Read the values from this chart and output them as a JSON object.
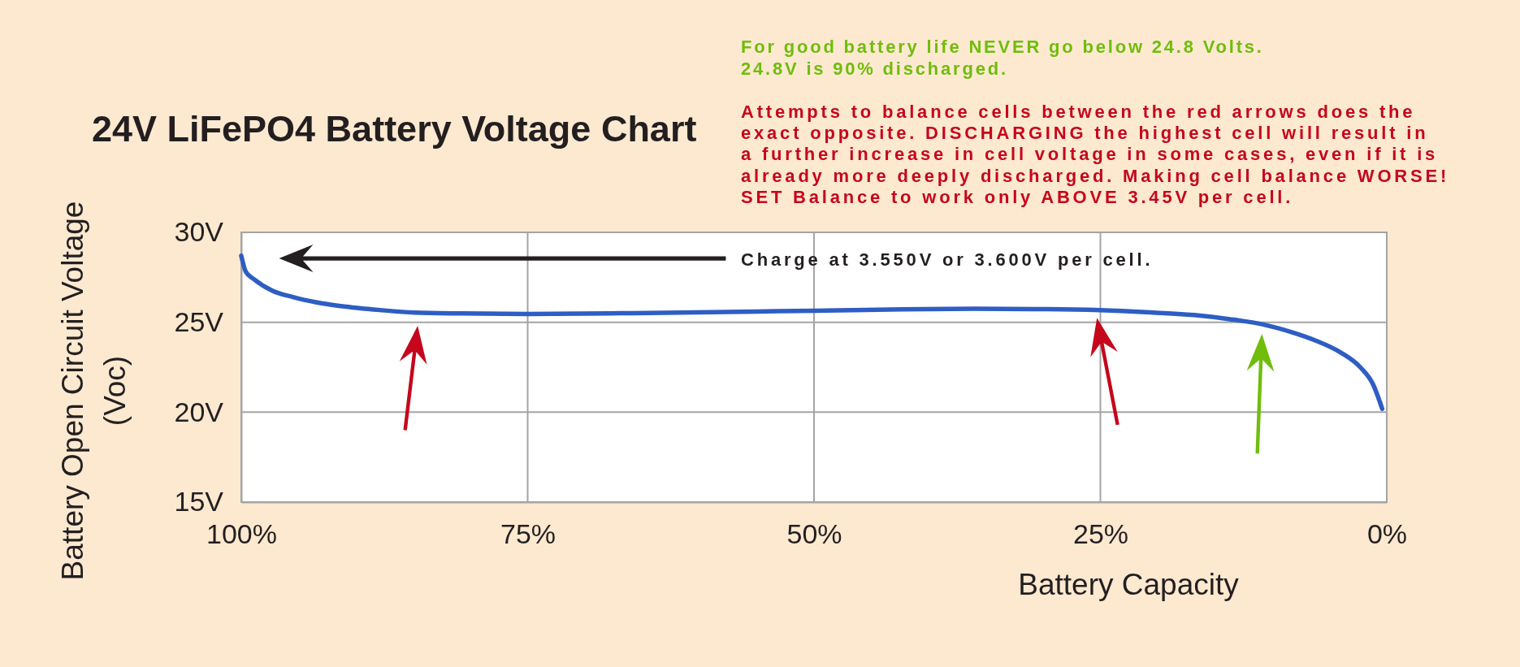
{
  "chart_data": {
    "type": "line",
    "title": "24V LiFePO4 Battery Voltage Chart",
    "xlabel": "Battery Capacity",
    "ylabel": "Battery Open Circuit Voltage\n(Voc)",
    "annotations": [
      "For good battery life NEVER go below 24.8 Volts.\n24.8V is 90% discharged.",
      "Attempts to balance cells between the red arrows does the\nexact opposite. DISCHARGING the highest cell will result in\na further increase in cell voltage in some cases, even if it is\nalready more deeply discharged. Making cell balance WORSE!\nSET Balance to work only ABOVE 3.45V per cell.",
      "Charge at 3.550V or 3.600V per cell."
    ],
    "x": [
      100,
      99.6,
      98.9,
      97.3,
      95.5,
      93.4,
      91.3,
      87.9,
      84.9,
      80.7,
      75,
      65.8,
      55,
      50,
      42.3,
      36,
      29.6,
      25,
      21,
      16.8,
      13.8,
      10.8,
      8.3,
      6.2,
      4,
      2.3,
      1.2,
      0.4
    ],
    "series": [
      {
        "color": "#2e5ec4",
        "values": [
          28.7,
          27.8,
          27.4,
          26.76,
          26.4,
          26.1,
          25.9,
          25.68,
          25.54,
          25.49,
          25.46,
          25.51,
          25.6,
          25.64,
          25.72,
          25.75,
          25.73,
          25.67,
          25.56,
          25.4,
          25.18,
          24.88,
          24.45,
          23.98,
          23.31,
          22.49,
          21.55,
          20.19
        ]
      }
    ],
    "xlim": [
      100,
      0
    ],
    "ylim": [
      15,
      30
    ],
    "xticks": [
      {
        "value": 100,
        "label": "100%"
      },
      {
        "value": 75,
        "label": "75%"
      },
      {
        "value": 50,
        "label": "50%"
      },
      {
        "value": 25,
        "label": "25%"
      },
      {
        "value": 0,
        "label": "0%"
      }
    ],
    "yticks": [
      {
        "value": 15,
        "label": "15V"
      },
      {
        "value": 20,
        "label": "20V"
      },
      {
        "value": 25,
        "label": "25V"
      },
      {
        "value": 30,
        "label": "30V"
      }
    ],
    "grid": true
  }
}
